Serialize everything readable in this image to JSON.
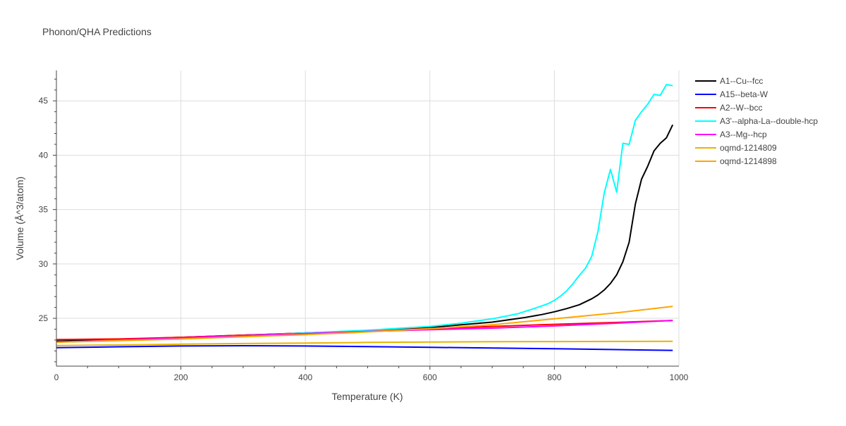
{
  "chart_data": {
    "type": "line",
    "title": "Phonon/QHA Predictions",
    "xlabel": "Temperature (K)",
    "ylabel": "Volume (Å^3/atom)",
    "xlim": [
      0,
      1000
    ],
    "ylim": [
      20.6,
      47.8
    ],
    "x_ticks": [
      0,
      200,
      400,
      600,
      800,
      1000
    ],
    "y_ticks": [
      25,
      30,
      35,
      40,
      45
    ],
    "grid": true,
    "legend_position": "right",
    "series": [
      {
        "name": "A1--Cu--fcc",
        "color": "#000000",
        "x": [
          0,
          100,
          200,
          300,
          400,
          500,
          600,
          650,
          700,
          750,
          780,
          800,
          820,
          840,
          860,
          870,
          880,
          890,
          900,
          910,
          920,
          930,
          940,
          950,
          960,
          970,
          980,
          990
        ],
        "y": [
          22.9,
          23.05,
          23.25,
          23.45,
          23.65,
          23.85,
          24.15,
          24.4,
          24.65,
          25.05,
          25.35,
          25.6,
          25.9,
          26.25,
          26.8,
          27.15,
          27.6,
          28.2,
          29.0,
          30.2,
          32.0,
          35.5,
          37.8,
          39.0,
          40.4,
          41.1,
          41.6,
          42.8
        ]
      },
      {
        "name": "A15--beta-W",
        "color": "#0000ff",
        "x": [
          0,
          100,
          200,
          300,
          400,
          500,
          600,
          700,
          800,
          900,
          990
        ],
        "y": [
          22.3,
          22.38,
          22.45,
          22.48,
          22.45,
          22.4,
          22.33,
          22.27,
          22.2,
          22.12,
          22.05
        ]
      },
      {
        "name": "A2--W--bcc",
        "color": "#ff0000",
        "x": [
          0,
          100,
          200,
          300,
          400,
          500,
          600,
          700,
          800,
          900,
          990
        ],
        "y": [
          23.05,
          23.1,
          23.25,
          23.45,
          23.65,
          23.85,
          24.05,
          24.25,
          24.45,
          24.62,
          24.8
        ]
      },
      {
        "name": "A3'--alpha-La--double-hcp",
        "color": "#00ffff",
        "x": [
          0,
          100,
          200,
          300,
          400,
          500,
          600,
          650,
          700,
          740,
          770,
          790,
          800,
          810,
          820,
          830,
          840,
          850,
          860,
          870,
          880,
          890,
          900,
          910,
          920,
          930,
          940,
          950,
          960,
          970,
          980,
          990
        ],
        "y": [
          22.8,
          22.95,
          23.15,
          23.4,
          23.65,
          23.9,
          24.25,
          24.55,
          24.95,
          25.4,
          25.95,
          26.35,
          26.65,
          27.05,
          27.55,
          28.2,
          28.95,
          29.6,
          30.7,
          33.0,
          36.5,
          38.7,
          36.6,
          41.1,
          41.0,
          43.2,
          44.0,
          44.7,
          45.6,
          45.5,
          46.5,
          46.4
        ]
      },
      {
        "name": "A3--Mg--hcp",
        "color": "#ff00ff",
        "x": [
          0,
          100,
          200,
          300,
          400,
          500,
          600,
          700,
          800,
          900,
          990
        ],
        "y": [
          22.8,
          23.0,
          23.2,
          23.4,
          23.6,
          23.8,
          23.95,
          24.1,
          24.3,
          24.55,
          24.8
        ]
      },
      {
        "name": "oqmd-1214809",
        "color": "#e8b400",
        "x": [
          0,
          100,
          200,
          300,
          400,
          500,
          600,
          700,
          800,
          900,
          990
        ],
        "y": [
          22.5,
          22.55,
          22.62,
          22.68,
          22.72,
          22.78,
          22.82,
          22.85,
          22.86,
          22.87,
          22.88
        ]
      },
      {
        "name": "oqmd-1214898",
        "color": "#ffa500",
        "x": [
          0,
          100,
          200,
          300,
          400,
          500,
          600,
          700,
          800,
          900,
          990
        ],
        "y": [
          22.8,
          22.95,
          23.1,
          23.3,
          23.5,
          23.75,
          24.05,
          24.4,
          24.95,
          25.5,
          26.1
        ]
      }
    ]
  }
}
